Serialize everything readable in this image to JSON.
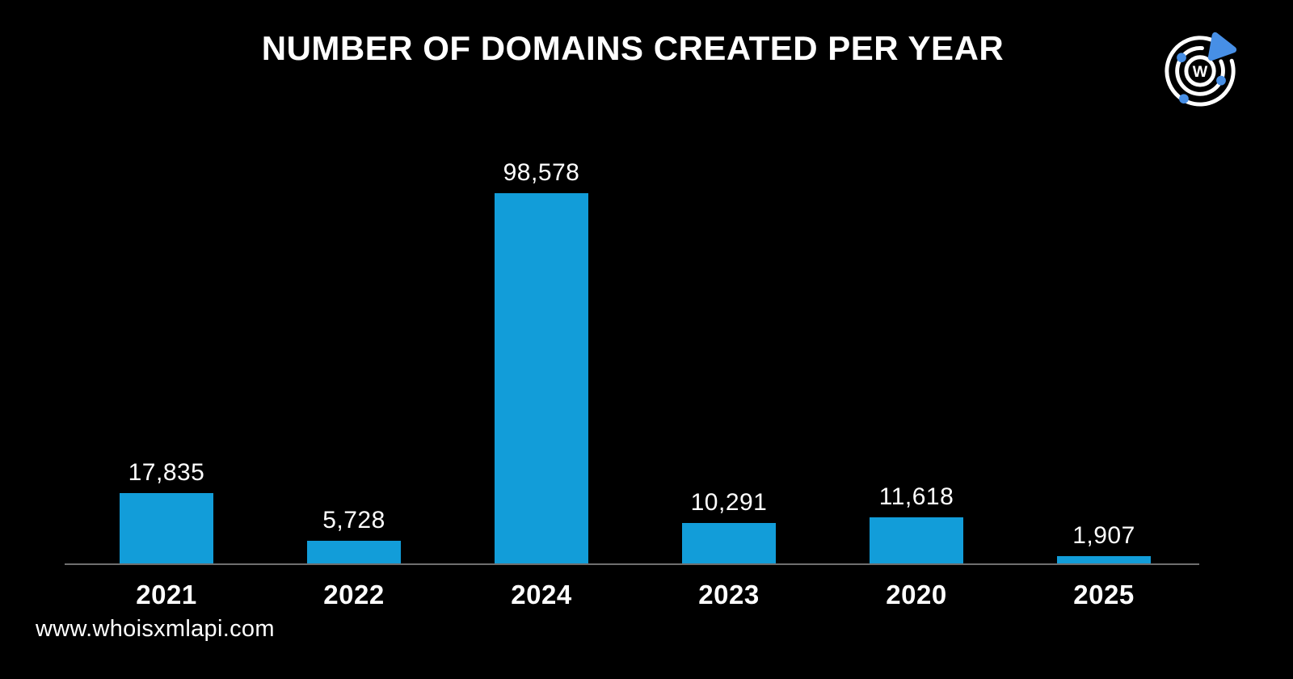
{
  "page": {
    "background": "#000000",
    "text_color": "#ffffff"
  },
  "chart_data": {
    "type": "bar",
    "orientation": "vertical",
    "title": "NUMBER OF DOMAINS CREATED PER YEAR",
    "categories": [
      "2021",
      "2022",
      "2024",
      "2023",
      "2020",
      "2025"
    ],
    "values": [
      17835,
      5728,
      98578,
      10291,
      11618,
      1907
    ],
    "value_labels": [
      "17,835",
      "5,728",
      "98,578",
      "10,291",
      "11,618",
      "1,907"
    ],
    "xlabel": "",
    "ylabel": "",
    "ylim": [
      0,
      98578
    ],
    "grid": false,
    "legend": false,
    "bar_color": "#129dd9",
    "axis_line_color": "#6f6f6f",
    "label_color": "#ffffff",
    "background": "#000000"
  },
  "logo": {
    "name": "whoisxmlapi-logo",
    "letter": "W",
    "accent_color": "#478fe6",
    "ring_color": "#ffffff"
  },
  "footer": {
    "url": "www.whoisxmlapi.com"
  }
}
